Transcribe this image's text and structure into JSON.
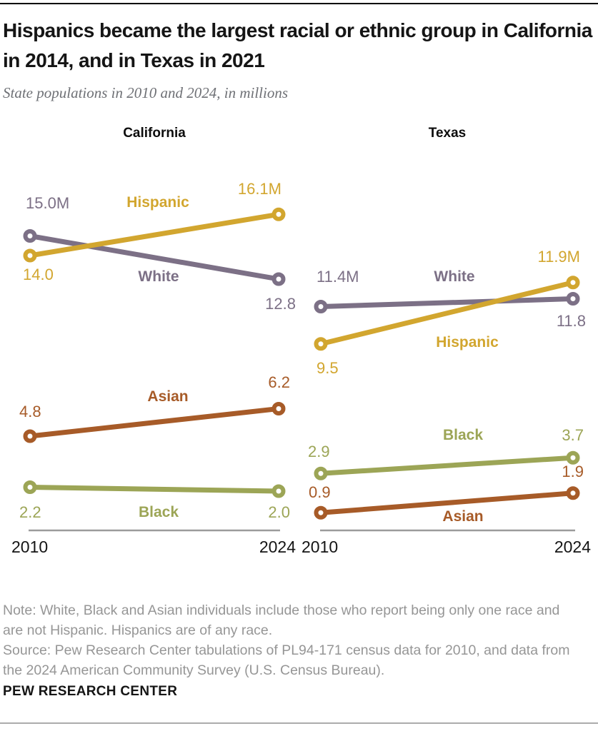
{
  "header": {
    "title": "Hispanics became the largest racial or ethnic group in California in 2014, and in Texas in 2021",
    "subtitle": "State populations in 2010 and 2024, in millions"
  },
  "charts": {
    "california": {
      "title": "California",
      "labels": {
        "white_2010": "15.0M",
        "white_2024": "12.8",
        "white_name": "White",
        "hispanic_2010": "14.0",
        "hispanic_2024": "16.1M",
        "hispanic_name": "Hispanic",
        "asian_2010": "4.8",
        "asian_2024": "6.2",
        "asian_name": "Asian",
        "black_2010": "2.2",
        "black_2024": "2.0",
        "black_name": "Black",
        "year_start": "2010",
        "year_end": "2024"
      }
    },
    "texas": {
      "title": "Texas",
      "labels": {
        "white_2010": "11.4M",
        "white_2024": "11.8",
        "white_name": "White",
        "hispanic_2010": "9.5",
        "hispanic_2024": "11.9M",
        "hispanic_name": "Hispanic",
        "black_2010": "2.9",
        "black_2024": "3.7",
        "black_name": "Black",
        "asian_2010": "0.9",
        "asian_2024": "1.9",
        "asian_name": "Asian",
        "year_start": "2010",
        "year_end": "2024"
      }
    }
  },
  "footer": {
    "note_line1": "Note: White, Black and Asian individuals include those who report being only one race and",
    "note_line2": "are not Hispanic. Hispanics are of any race.",
    "source_line1": "Source: Pew Research Center tabulations of PL94-171 census data for 2010, and data from",
    "source_line2": "the 2024 American Community Survey (U.S. Census Bureau).",
    "brand": "PEW RESEARCH CENTER"
  },
  "colors": {
    "hispanic": "#D2A62F",
    "white": "#7C7086",
    "asian": "#A75B28",
    "black": "#9CA556",
    "axis": "#9B9B9B"
  },
  "chart_data": [
    {
      "type": "line",
      "title": "California",
      "x": [
        "2010",
        "2024"
      ],
      "unit": "millions",
      "ylim": [
        0,
        17
      ],
      "series": [
        {
          "name": "White",
          "color": "#7C7086",
          "values": [
            15.0,
            12.8
          ]
        },
        {
          "name": "Hispanic",
          "color": "#D2A62F",
          "values": [
            14.0,
            16.1
          ]
        },
        {
          "name": "Asian",
          "color": "#A75B28",
          "values": [
            4.8,
            6.2
          ]
        },
        {
          "name": "Black",
          "color": "#9CA556",
          "values": [
            2.2,
            2.0
          ]
        }
      ]
    },
    {
      "type": "line",
      "title": "Texas",
      "x": [
        "2010",
        "2024"
      ],
      "unit": "millions",
      "ylim": [
        0,
        17
      ],
      "series": [
        {
          "name": "White",
          "color": "#7C7086",
          "values": [
            11.4,
            11.8
          ]
        },
        {
          "name": "Hispanic",
          "color": "#D2A62F",
          "values": [
            9.5,
            11.9
          ]
        },
        {
          "name": "Black",
          "color": "#9CA556",
          "values": [
            2.9,
            3.7
          ]
        },
        {
          "name": "Asian",
          "color": "#A75B28",
          "values": [
            0.9,
            1.9
          ]
        }
      ]
    }
  ]
}
